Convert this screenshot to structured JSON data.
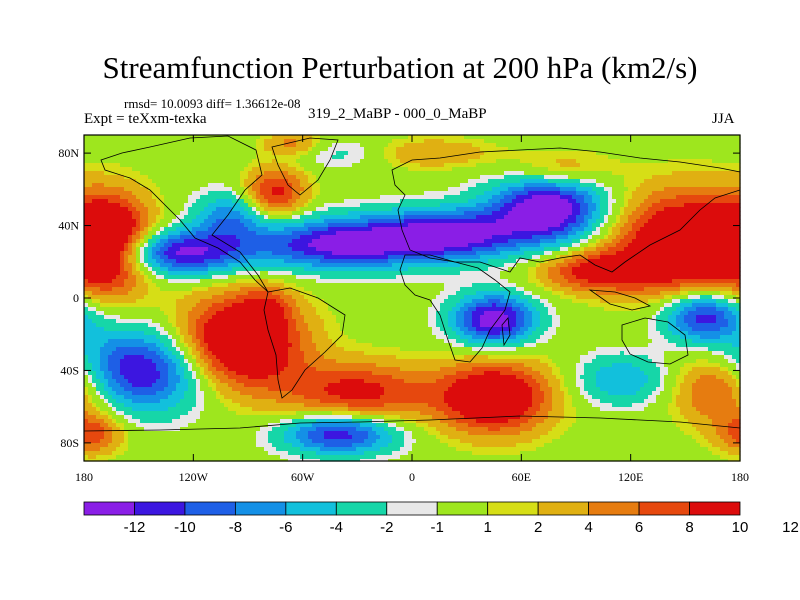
{
  "chart_data": {
    "type": "heatmap",
    "title": "Streamfunction Perturbation at 200 hPa (km2/s)",
    "subtitle_stats": "rmsd= 10.0093 diff= 1.36612e-08",
    "experiment": "Expt = teXxm-texka",
    "case_label": "319_2_MaBP - 000_0_MaBP",
    "season": "JJA",
    "x_range": [
      -180,
      180
    ],
    "y_range": [
      -90,
      90
    ],
    "x_ticks": [
      {
        "value": -180,
        "label": "180"
      },
      {
        "value": -120,
        "label": "120W"
      },
      {
        "value": -60,
        "label": "60W"
      },
      {
        "value": 0,
        "label": "0"
      },
      {
        "value": 60,
        "label": "60E"
      },
      {
        "value": 120,
        "label": "120E"
      },
      {
        "value": 180,
        "label": "180"
      }
    ],
    "y_ticks": [
      {
        "value": 80,
        "label": "80N"
      },
      {
        "value": 40,
        "label": "40N"
      },
      {
        "value": 0,
        "label": "0"
      },
      {
        "value": -40,
        "label": "40S"
      },
      {
        "value": -80,
        "label": "80S"
      }
    ],
    "colorbar": {
      "colors": [
        "#8a1ee6",
        "#3c16e0",
        "#1e5fe6",
        "#1490e6",
        "#12c0dc",
        "#16d6a8",
        "#e8e8e8",
        "#9ee61e",
        "#d6de16",
        "#e0b012",
        "#e67c10",
        "#e6480e",
        "#dc0c0c"
      ],
      "labels": [
        "-12",
        "-10",
        "-8",
        "-6",
        "-4",
        "-2",
        "-1",
        "1",
        "2",
        "4",
        "6",
        "8",
        "10",
        "12"
      ]
    },
    "anomalies": [
      {
        "lon": -165,
        "lat": 30,
        "amp": 14,
        "slon": 16,
        "slat": 18
      },
      {
        "lon": -95,
        "lat": -25,
        "amp": 15,
        "slon": 24,
        "slat": 18
      },
      {
        "lon": -75,
        "lat": 58,
        "amp": 9,
        "slon": 12,
        "slat": 10
      },
      {
        "lon": -30,
        "lat": -52,
        "amp": 9,
        "slon": 28,
        "slat": 12
      },
      {
        "lon": 45,
        "lat": -55,
        "amp": 13,
        "slon": 22,
        "slat": 14
      },
      {
        "lon": 150,
        "lat": 30,
        "amp": 14,
        "slon": 28,
        "slat": 20
      },
      {
        "lon": 100,
        "lat": 15,
        "amp": 9,
        "slon": 22,
        "slat": 8
      },
      {
        "lon": 170,
        "lat": -50,
        "amp": 9,
        "slon": 18,
        "slat": 14
      },
      {
        "lon": 80,
        "lat": 70,
        "amp": 6,
        "slon": 20,
        "slat": 8
      },
      {
        "lon": -175,
        "lat": -75,
        "amp": 7,
        "slon": 12,
        "slat": 8
      },
      {
        "lon": -130,
        "lat": 25,
        "amp": -13,
        "slon": 28,
        "slat": 9
      },
      {
        "lon": -40,
        "lat": 30,
        "amp": -13,
        "slon": 32,
        "slat": 10
      },
      {
        "lon": 20,
        "lat": 35,
        "amp": -13,
        "slon": 28,
        "slat": 10
      },
      {
        "lon": 75,
        "lat": 50,
        "amp": -15,
        "slon": 22,
        "slat": 14
      },
      {
        "lon": 45,
        "lat": -12,
        "amp": -14,
        "slon": 16,
        "slat": 10
      },
      {
        "lon": -150,
        "lat": -40,
        "amp": -13,
        "slon": 28,
        "slat": 16
      },
      {
        "lon": 160,
        "lat": -10,
        "amp": -12,
        "slon": 16,
        "slat": 10
      },
      {
        "lon": -40,
        "lat": -75,
        "amp": -12,
        "slon": 22,
        "slat": 8
      },
      {
        "lon": -100,
        "lat": 45,
        "amp": -7,
        "slon": 14,
        "slat": 10
      },
      {
        "lon": -40,
        "lat": 80,
        "amp": -3,
        "slon": 20,
        "slat": 6
      },
      {
        "lon": 115,
        "lat": -45,
        "amp": -6,
        "slon": 18,
        "slat": 10
      },
      {
        "lon": -80,
        "lat": -5,
        "amp": 4,
        "slon": 10,
        "slat": 10
      },
      {
        "lon": -65,
        "lat": 85,
        "amp": 5,
        "slon": 12,
        "slat": 5
      },
      {
        "lon": 10,
        "lat": 80,
        "amp": 4,
        "slon": 25,
        "slat": 6
      }
    ]
  }
}
